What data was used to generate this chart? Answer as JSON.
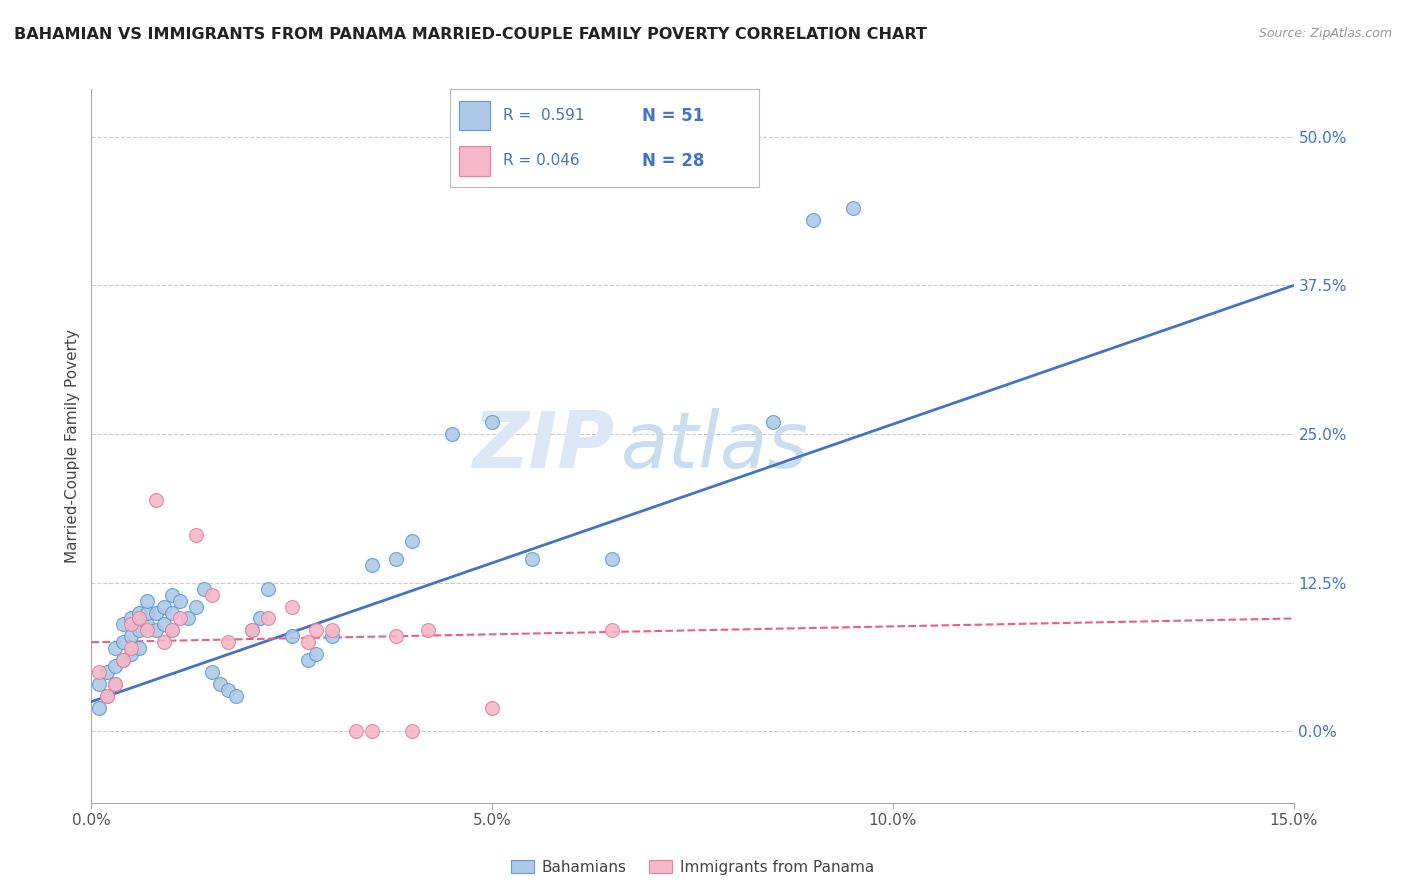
{
  "title": "BAHAMIAN VS IMMIGRANTS FROM PANAMA MARRIED-COUPLE FAMILY POVERTY CORRELATION CHART",
  "source": "Source: ZipAtlas.com",
  "ylabel": "Married-Couple Family Poverty",
  "xlim": [
    0.0,
    0.15
  ],
  "ylim": [
    -0.06,
    0.54
  ],
  "xticks": [
    0.0,
    0.05,
    0.1,
    0.15
  ],
  "xticklabels": [
    "0.0%",
    "5.0%",
    "10.0%",
    "15.0%"
  ],
  "yticks_right": [
    0.0,
    0.125,
    0.25,
    0.375,
    0.5
  ],
  "yticks_right_labels": [
    "0.0%",
    "12.5%",
    "25.0%",
    "37.5%",
    "50.0%"
  ],
  "grid_color": "#cccccc",
  "background_color": "#ffffff",
  "blue_color": "#aec9e8",
  "pink_color": "#f4b8c8",
  "blue_edge_color": "#5b9bd5",
  "pink_edge_color": "#e87fa0",
  "blue_line_color": "#4472c4",
  "pink_line_color": "#e85d8a",
  "legend_label1": "Bahamians",
  "legend_label2": "Immigrants from Panama",
  "watermark_zip": "ZIP",
  "watermark_atlas": "atlas",
  "blue_scatter_x": [
    0.001,
    0.001,
    0.002,
    0.002,
    0.003,
    0.003,
    0.003,
    0.004,
    0.004,
    0.004,
    0.005,
    0.005,
    0.005,
    0.006,
    0.006,
    0.006,
    0.007,
    0.007,
    0.007,
    0.008,
    0.008,
    0.009,
    0.009,
    0.01,
    0.01,
    0.01,
    0.011,
    0.012,
    0.013,
    0.014,
    0.015,
    0.016,
    0.017,
    0.018,
    0.02,
    0.021,
    0.022,
    0.025,
    0.027,
    0.028,
    0.03,
    0.035,
    0.038,
    0.04,
    0.045,
    0.05,
    0.055,
    0.065,
    0.085,
    0.09,
    0.095
  ],
  "blue_scatter_y": [
    0.02,
    0.04,
    0.03,
    0.05,
    0.04,
    0.055,
    0.07,
    0.06,
    0.075,
    0.09,
    0.065,
    0.08,
    0.095,
    0.07,
    0.085,
    0.1,
    0.09,
    0.1,
    0.11,
    0.085,
    0.1,
    0.09,
    0.105,
    0.085,
    0.1,
    0.115,
    0.11,
    0.095,
    0.105,
    0.12,
    0.05,
    0.04,
    0.035,
    0.03,
    0.085,
    0.095,
    0.12,
    0.08,
    0.06,
    0.065,
    0.08,
    0.14,
    0.145,
    0.16,
    0.25,
    0.26,
    0.145,
    0.145,
    0.26,
    0.43,
    0.44
  ],
  "pink_scatter_x": [
    0.001,
    0.002,
    0.003,
    0.004,
    0.005,
    0.005,
    0.006,
    0.007,
    0.008,
    0.009,
    0.01,
    0.011,
    0.013,
    0.015,
    0.017,
    0.02,
    0.022,
    0.025,
    0.027,
    0.028,
    0.03,
    0.033,
    0.035,
    0.038,
    0.04,
    0.042,
    0.05,
    0.065
  ],
  "pink_scatter_y": [
    0.05,
    0.03,
    0.04,
    0.06,
    0.07,
    0.09,
    0.095,
    0.085,
    0.195,
    0.075,
    0.085,
    0.095,
    0.165,
    0.115,
    0.075,
    0.085,
    0.095,
    0.105,
    0.075,
    0.085,
    0.085,
    0.0,
    0.0,
    0.08,
    0.0,
    0.085,
    0.02,
    0.085
  ],
  "blue_line_x": [
    0.0,
    0.15
  ],
  "blue_line_y": [
    0.025,
    0.375
  ],
  "pink_line_x": [
    0.0,
    0.15
  ],
  "pink_line_y": [
    0.075,
    0.095
  ]
}
